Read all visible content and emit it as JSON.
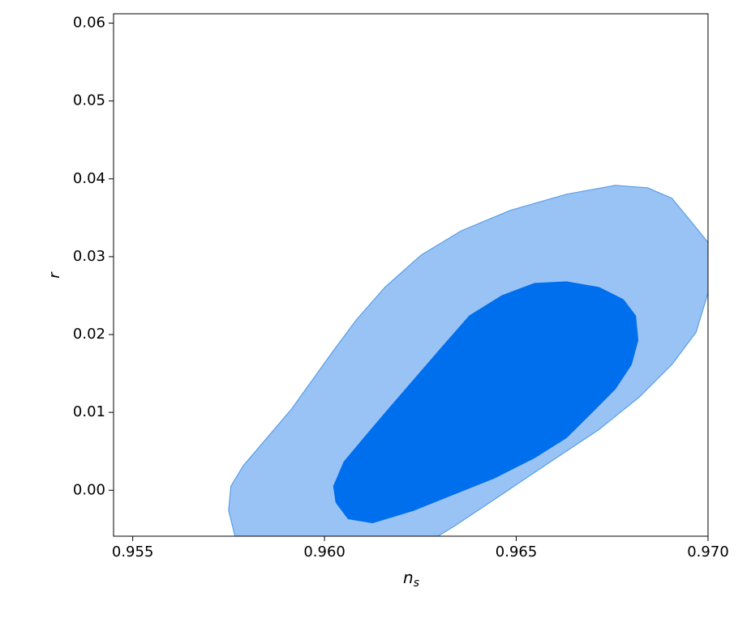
{
  "chart_data": {
    "type": "contour",
    "xlabel": {
      "base": "n",
      "subscript": "s"
    },
    "ylabel": "r",
    "xlim": [
      0.9545,
      0.97
    ],
    "ylim": [
      -0.0059,
      0.0612
    ],
    "xticks": [
      0.955,
      {
        "value": 0.96,
        "label": "0.960"
      },
      0.965,
      {
        "value": 0.97,
        "label": "0.970"
      }
    ],
    "yticks": [
      {
        "value": 0,
        "label": "0.00"
      },
      0.01,
      0.02,
      0.03,
      0.04,
      0.05,
      0.06
    ],
    "series": [
      {
        "color": "#9ac3f5",
        "edge_color": "#5a9ee6",
        "x": [
          0.95767,
          0.9575,
          0.95756,
          0.95788,
          0.95851,
          0.95914,
          0.95967,
          0.9602,
          0.96083,
          0.96157,
          0.96252,
          0.96357,
          0.96484,
          0.96631,
          0.96758,
          0.96842,
          0.96906,
          0.96958,
          0.97001,
          0.97001,
          0.96969,
          0.96906,
          0.96821,
          0.96716,
          0.96589,
          0.96463,
          0.96336,
          0.96294
        ],
        "y": [
          -0.00594,
          -0.0026,
          0.00052,
          0.00313,
          0.00677,
          0.01042,
          0.01406,
          0.01771,
          0.02188,
          0.02604,
          0.03021,
          0.03333,
          0.03594,
          0.03802,
          0.03917,
          0.03885,
          0.0375,
          0.03438,
          0.03177,
          0.02552,
          0.02031,
          0.01615,
          0.01198,
          0.00781,
          0.00365,
          -0.00052,
          -0.00469,
          -0.00594
        ]
      },
      {
        "color": "#006fed",
        "edge_color": "#006fed",
        "x": [
          0.9603,
          0.96024,
          0.96051,
          0.96104,
          0.96167,
          0.96231,
          0.96304,
          0.96378,
          0.96463,
          0.96547,
          0.96631,
          0.96716,
          0.96779,
          0.96811,
          0.96817,
          0.968,
          0.96758,
          0.96695,
          0.96631,
          0.96547,
          0.96442,
          0.96336,
          0.96231,
          0.96125,
          0.96062
        ],
        "y": [
          -0.00156,
          0.00052,
          0.00365,
          0.00677,
          0.01042,
          0.01406,
          0.01823,
          0.0224,
          0.025,
          0.02656,
          0.02677,
          0.02604,
          0.02448,
          0.0224,
          0.01927,
          0.01615,
          0.01302,
          0.0099,
          0.00677,
          0.00417,
          0.00156,
          -0.00052,
          -0.0026,
          -0.00417,
          -0.00365
        ]
      }
    ]
  }
}
